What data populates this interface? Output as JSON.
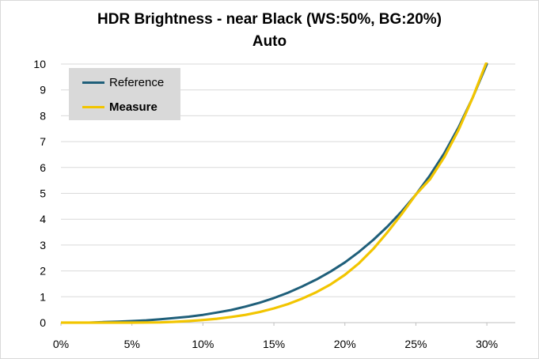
{
  "chart_data": {
    "type": "line",
    "title": "HDR Brightness - near Black (WS:50%, BG:20%)",
    "subtitle": "Auto",
    "xlabel": "",
    "ylabel": "",
    "xlim": [
      0,
      32
    ],
    "ylim": [
      0,
      10
    ],
    "x_ticks": [
      "0%",
      "5%",
      "10%",
      "15%",
      "20%",
      "25%",
      "30%"
    ],
    "y_ticks": [
      "0",
      "1",
      "2",
      "3",
      "4",
      "5",
      "6",
      "7",
      "8",
      "9",
      "10"
    ],
    "grid": "horizontal",
    "legend_position": "top-left",
    "series": [
      {
        "name": "Reference",
        "color": "#1f5f7a",
        "points": [
          [
            0,
            0
          ],
          [
            2,
            0
          ],
          [
            3,
            0.02
          ],
          [
            4,
            0.04
          ],
          [
            5,
            0.06
          ],
          [
            6,
            0.09
          ],
          [
            7,
            0.13
          ],
          [
            8,
            0.18
          ],
          [
            9,
            0.23
          ],
          [
            10,
            0.3
          ],
          [
            11,
            0.39
          ],
          [
            12,
            0.49
          ],
          [
            13,
            0.62
          ],
          [
            14,
            0.77
          ],
          [
            15,
            0.95
          ],
          [
            16,
            1.16
          ],
          [
            17,
            1.4
          ],
          [
            18,
            1.67
          ],
          [
            19,
            1.98
          ],
          [
            20,
            2.33
          ],
          [
            21,
            2.74
          ],
          [
            22,
            3.2
          ],
          [
            23,
            3.72
          ],
          [
            24,
            4.3
          ],
          [
            25,
            4.95
          ],
          [
            26,
            5.7
          ],
          [
            27,
            6.55
          ],
          [
            28,
            7.55
          ],
          [
            29,
            8.7
          ],
          [
            30,
            10.0
          ]
        ]
      },
      {
        "name": "Measure",
        "color": "#f2c500",
        "points": [
          [
            0,
            0
          ],
          [
            5,
            0
          ],
          [
            7,
            0.01
          ],
          [
            8,
            0.03
          ],
          [
            9,
            0.06
          ],
          [
            10,
            0.1
          ],
          [
            11,
            0.15
          ],
          [
            12,
            0.22
          ],
          [
            13,
            0.3
          ],
          [
            14,
            0.41
          ],
          [
            15,
            0.55
          ],
          [
            16,
            0.72
          ],
          [
            17,
            0.93
          ],
          [
            18,
            1.18
          ],
          [
            19,
            1.48
          ],
          [
            20,
            1.85
          ],
          [
            21,
            2.3
          ],
          [
            22,
            2.85
          ],
          [
            23,
            3.5
          ],
          [
            24,
            4.2
          ],
          [
            25,
            4.95
          ],
          [
            26,
            5.55
          ],
          [
            27,
            6.4
          ],
          [
            28,
            7.45
          ],
          [
            29,
            8.7
          ],
          [
            30,
            10.1
          ]
        ]
      }
    ]
  }
}
